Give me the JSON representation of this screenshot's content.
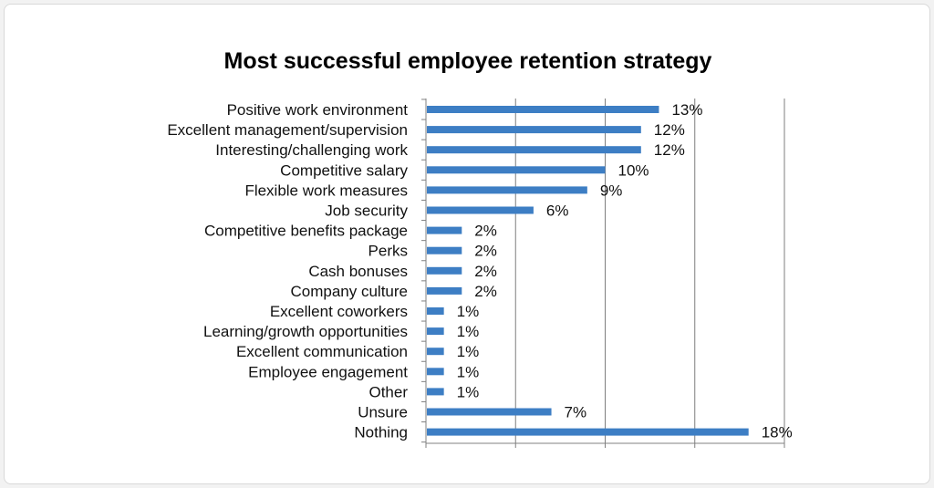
{
  "chart_data": {
    "type": "bar",
    "orientation": "horizontal",
    "title": "Most successful employee retention strategy",
    "categories": [
      "Positive work environment",
      "Excellent management/supervision",
      "Interesting/challenging work",
      "Competitive salary",
      "Flexible work measures",
      "Job security",
      "Competitive benefits package",
      "Perks",
      "Cash bonuses",
      "Company culture",
      "Excellent coworkers",
      "Learning/growth opportunities",
      "Excellent communication",
      "Employee engagement",
      "Other",
      "Unsure",
      "Nothing"
    ],
    "values": [
      13,
      12,
      12,
      10,
      9,
      6,
      2,
      2,
      2,
      2,
      1,
      1,
      1,
      1,
      1,
      7,
      18
    ],
    "value_labels": [
      "13%",
      "12%",
      "12%",
      "10%",
      "9%",
      "6%",
      "2%",
      "2%",
      "2%",
      "2%",
      "1%",
      "1%",
      "1%",
      "1%",
      "1%",
      "7%",
      "18%"
    ],
    "xlim": [
      0,
      20
    ],
    "x_gridlines": [
      0,
      5,
      10,
      15,
      20
    ],
    "grid": true,
    "legend": "none",
    "bar_color": "#3d7ec4",
    "grid_color": "#7f7f7f"
  }
}
